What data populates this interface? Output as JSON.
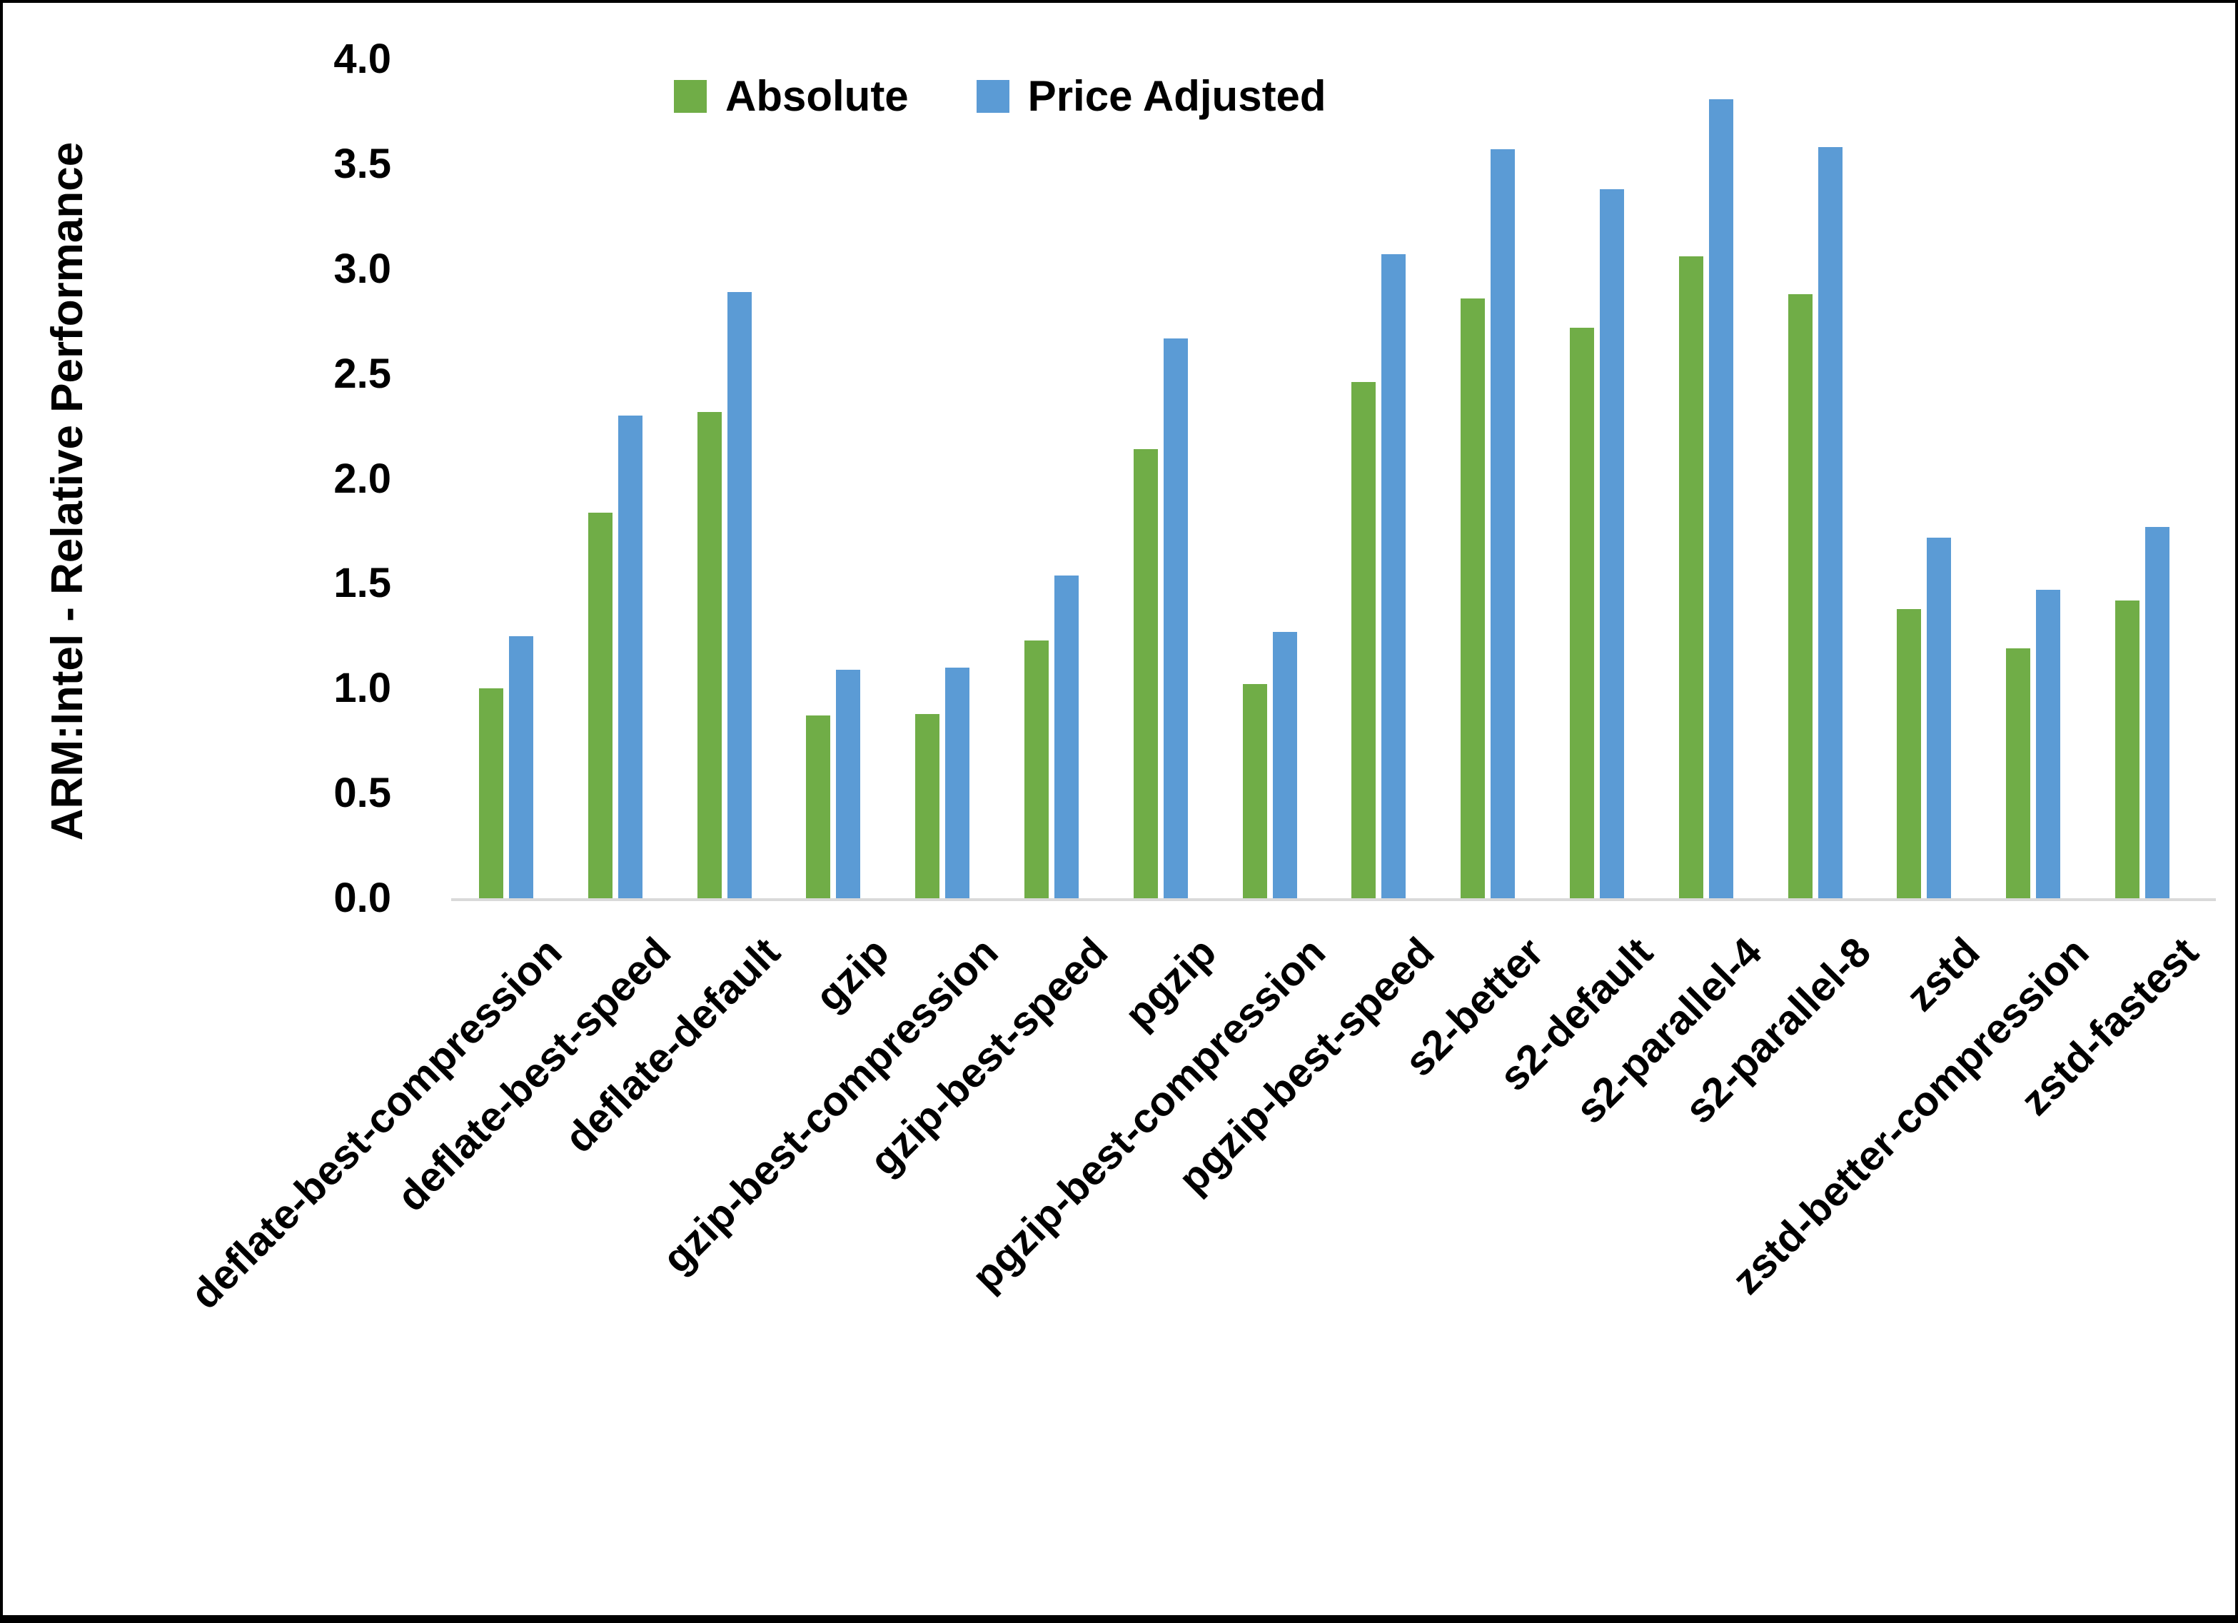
{
  "chart_data": {
    "type": "bar",
    "title": "",
    "xlabel": "",
    "ylabel": "ARM:Intel - Relative Performance",
    "ylim": [
      0.0,
      4.0
    ],
    "ytick_step": 0.5,
    "yticks": [
      "0.0",
      "0.5",
      "1.0",
      "1.5",
      "2.0",
      "2.5",
      "3.0",
      "3.5",
      "4.0"
    ],
    "grid": false,
    "legend_position": "top-center",
    "categories": [
      "deflate-best-compression",
      "deflate-best-speed",
      "deflate-default",
      "gzip",
      "gzip-best-compression",
      "gzip-best-speed",
      "pgzip",
      "pgzip-best-compression",
      "pgzip-best-speed",
      "s2-better",
      "s2-default",
      "s2-parallel-4",
      "s2-parallel-8",
      "zstd",
      "zstd-better-compression",
      "zstd-fastest"
    ],
    "series": [
      {
        "name": "Absolute",
        "color": "#70AD47",
        "values": [
          1.0,
          1.84,
          2.32,
          0.87,
          0.88,
          1.23,
          2.14,
          1.02,
          2.46,
          2.86,
          2.72,
          3.06,
          2.88,
          1.38,
          1.19,
          1.42
        ]
      },
      {
        "name": "Price Adjusted",
        "color": "#5B9BD5",
        "values": [
          1.25,
          2.3,
          2.89,
          1.09,
          1.1,
          1.54,
          2.67,
          1.27,
          3.07,
          3.57,
          3.38,
          3.81,
          3.58,
          1.72,
          1.47,
          1.77
        ]
      }
    ]
  },
  "colors": {
    "axis_line": "#D9D9D9",
    "text": "#000000",
    "background": "#FFFFFF"
  }
}
